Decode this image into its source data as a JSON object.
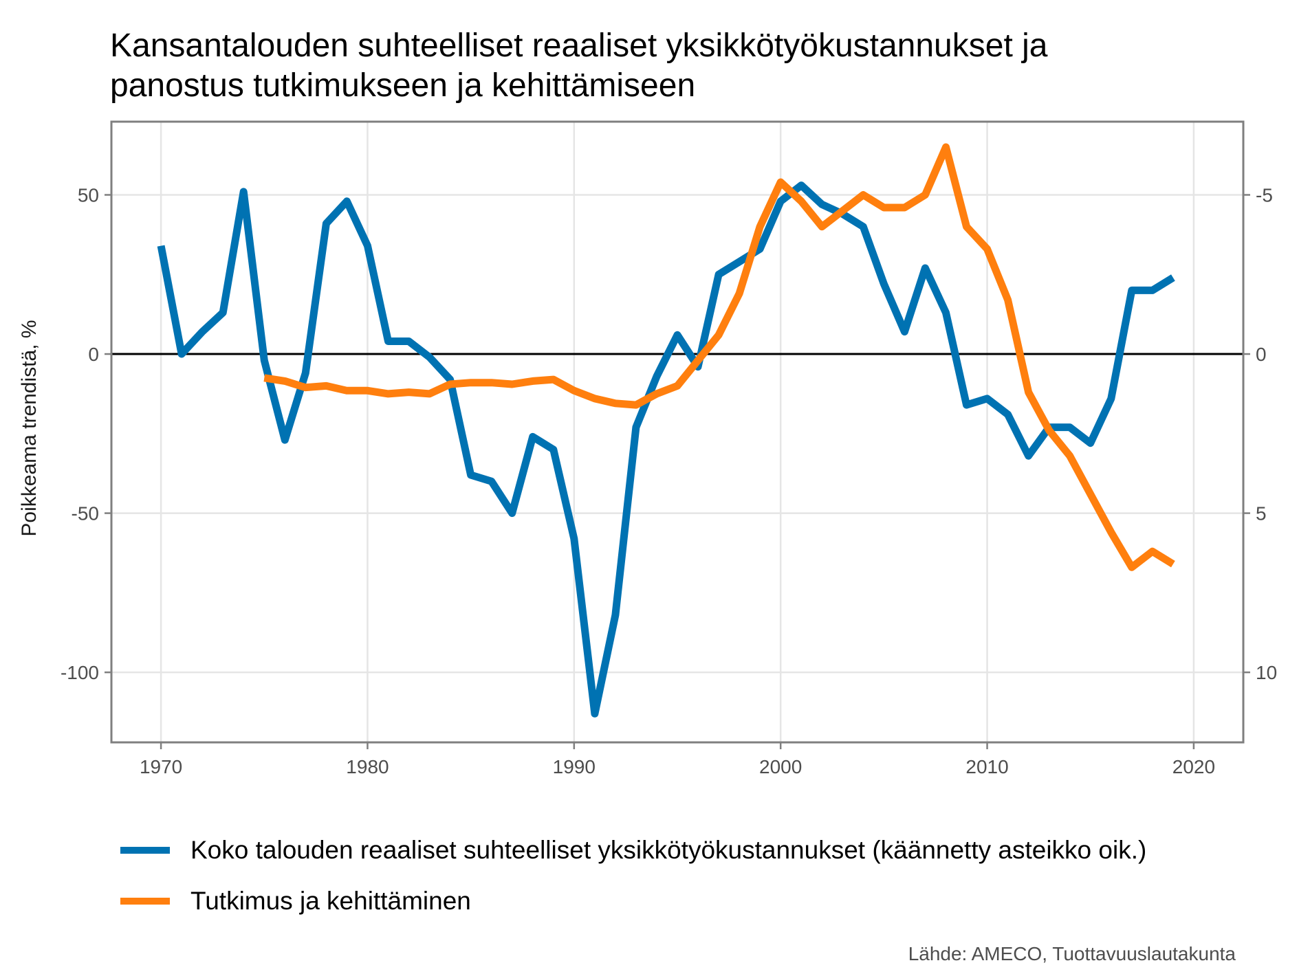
{
  "chart_data": {
    "type": "line",
    "title_lines": [
      "Kansantalouden suhteelliset reaaliset yksikkötyökustannukset ja",
      "panostus tutkimukseen ja kehittämiseen"
    ],
    "ylabel": "Poikkeama trendistä, %",
    "xlim": [
      1967.6,
      2022.4
    ],
    "ylim": [
      -122,
      73
    ],
    "y2lim": [
      12.2,
      -7.3
    ],
    "x_ticks": [
      "1970",
      "1980",
      "1990",
      "2000",
      "2010",
      "2020"
    ],
    "y_ticks": [
      "50",
      "0",
      "-50",
      "-100"
    ],
    "y2_ticks": [
      "-5",
      "0",
      "5",
      "10"
    ],
    "grid": true,
    "legend_position": "bottom",
    "series": [
      {
        "name": "Koko talouden reaaliset suhteelliset yksikkötyökustannukset (käännetty asteikko oik.)",
        "color": "#0072B2",
        "axis": "left",
        "x": [
          1970,
          1971,
          1972,
          1973,
          1974,
          1975,
          1976,
          1977,
          1978,
          1979,
          1980,
          1981,
          1982,
          1983,
          1984,
          1985,
          1986,
          1987,
          1988,
          1989,
          1990,
          1991,
          1992,
          1993,
          1994,
          1995,
          1996,
          1997,
          1998,
          1999,
          2000,
          2001,
          2002,
          2003,
          2004,
          2005,
          2006,
          2007,
          2008,
          2009,
          2010,
          2011,
          2012,
          2013,
          2014,
          2015,
          2016,
          2017,
          2018,
          2019
        ],
        "values": [
          34,
          0,
          7,
          13,
          51,
          -2,
          -27,
          -6,
          41,
          48,
          34,
          4,
          4,
          -1,
          -8,
          -38,
          -40,
          -50,
          -26,
          -30,
          -58,
          -113,
          -82,
          -23,
          -7,
          6,
          -4,
          25,
          29,
          33,
          48,
          53,
          47,
          44,
          40,
          22,
          7,
          27,
          13,
          -16,
          -14,
          -19,
          -32,
          -23,
          -23,
          -28,
          -14,
          20,
          20,
          24
        ]
      },
      {
        "name": "Tutkimus ja kehittäminen",
        "color": "#FF7F0E",
        "axis": "right",
        "x": [
          1975,
          1976,
          1977,
          1978,
          1979,
          1980,
          1981,
          1982,
          1983,
          1984,
          1985,
          1986,
          1987,
          1988,
          1989,
          1990,
          1991,
          1992,
          1993,
          1994,
          1995,
          1996,
          1997,
          1998,
          1999,
          2000,
          2001,
          2002,
          2003,
          2004,
          2005,
          2006,
          2007,
          2008,
          2009,
          2010,
          2011,
          2012,
          2013,
          2014,
          2015,
          2016,
          2017,
          2018,
          2019
        ],
        "values": [
          0.75,
          0.85,
          1.05,
          1.0,
          1.15,
          1.15,
          1.25,
          1.2,
          1.25,
          0.95,
          0.9,
          0.9,
          0.95,
          0.85,
          0.8,
          1.15,
          1.4,
          1.55,
          1.6,
          1.25,
          1.0,
          0.2,
          -0.6,
          -1.9,
          -4.0,
          -5.4,
          -4.8,
          -4.0,
          -4.5,
          -5.0,
          -4.6,
          -4.6,
          -5.0,
          -6.5,
          -4.0,
          -3.3,
          -1.7,
          1.2,
          2.4,
          3.2,
          4.4,
          5.6,
          6.7,
          6.2,
          6.6
        ]
      }
    ]
  },
  "source": "Lähde: AMECO, Tuottavuuslautakunta"
}
